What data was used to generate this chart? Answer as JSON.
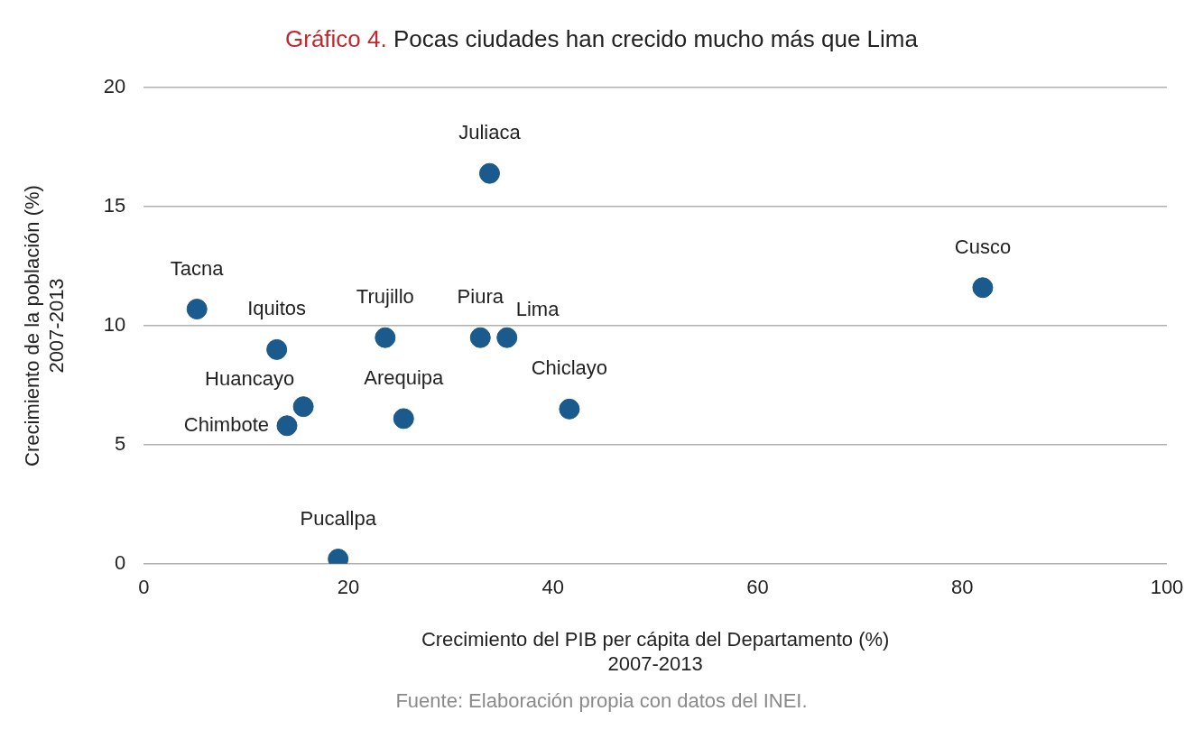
{
  "chart_data": {
    "type": "scatter",
    "title": "Gráfico 4. Pocas ciudades han crecido mucho más que Lima",
    "xlabel": "Crecimiento del PIB per cápita del Departamento (%)\n2007-2013",
    "ylabel": "Crecimiento de la población (%)\n2007-2013",
    "x": [
      5.2,
      13.0,
      15.6,
      14.0,
      19.0,
      23.6,
      25.4,
      33.8,
      32.9,
      35.5,
      41.6,
      82.0
    ],
    "values": [
      10.7,
      9.0,
      6.6,
      5.8,
      0.2,
      9.5,
      6.1,
      16.4,
      9.5,
      9.5,
      6.5,
      11.6
    ],
    "color": "#1a5a8c",
    "marker": "circle",
    "xlim": [
      0,
      100
    ],
    "xticks": [
      0,
      20,
      40,
      60,
      80,
      100
    ],
    "ylim": [
      0,
      20
    ],
    "yticks": [
      0,
      5,
      10,
      15,
      20
    ],
    "grid": "y",
    "annotations": [
      {
        "text": "Tacna",
        "x": 5.2,
        "y": 10.7
      },
      {
        "text": "Iquitos",
        "x": 13.0,
        "y": 9.0
      },
      {
        "text": "Huancayo",
        "x": 15.6,
        "y": 6.6
      },
      {
        "text": "Chimbote",
        "x": 14.0,
        "y": 5.8
      },
      {
        "text": "Pucallpa",
        "x": 19.0,
        "y": 0.2
      },
      {
        "text": "Trujillo",
        "x": 23.6,
        "y": 9.5
      },
      {
        "text": "Arequipa",
        "x": 25.4,
        "y": 6.1
      },
      {
        "text": "Juliaca",
        "x": 33.8,
        "y": 16.4
      },
      {
        "text": "Piura",
        "x": 32.9,
        "y": 9.5
      },
      {
        "text": "Lima",
        "x": 35.5,
        "y": 9.5
      },
      {
        "text": "Chiclayo",
        "x": 41.6,
        "y": 6.5
      },
      {
        "text": "Cusco",
        "x": 82.0,
        "y": 11.6
      },
      "Fuente: Elaboración propia con datos del INEI."
    ]
  }
}
